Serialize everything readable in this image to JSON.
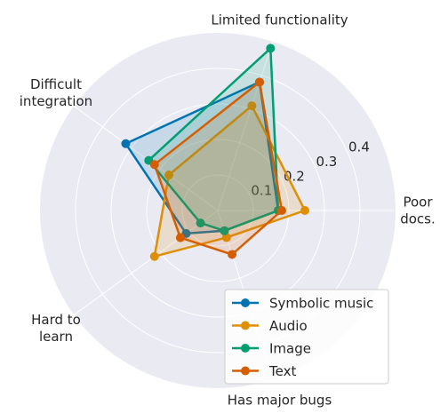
{
  "chart_data": {
    "type": "radar",
    "categories": [
      "Poor\ndocs.",
      "Limited functionality",
      "Difficult\nintegration",
      "Hard to\nlearn",
      "Has major bugs"
    ],
    "series": [
      {
        "name": "Symbolic music",
        "color": "#0173b2",
        "values": [
          0.17,
          0.38,
          0.32,
          0.11,
          0.06
        ]
      },
      {
        "name": "Audio",
        "color": "#de8f05",
        "values": [
          0.245,
          0.31,
          0.17,
          0.22,
          0.08
        ]
      },
      {
        "name": "Image",
        "color": "#029e73",
        "values": [
          0.17,
          0.48,
          0.24,
          0.06,
          0.06
        ]
      },
      {
        "name": "Text",
        "color": "#d55e00",
        "values": [
          0.18,
          0.38,
          0.22,
          0.13,
          0.13
        ]
      }
    ],
    "ylim": [
      0,
      0.5
    ],
    "yticks": [
      0.1,
      0.2,
      0.3,
      0.4
    ],
    "grid": true,
    "legend": "lower right"
  }
}
